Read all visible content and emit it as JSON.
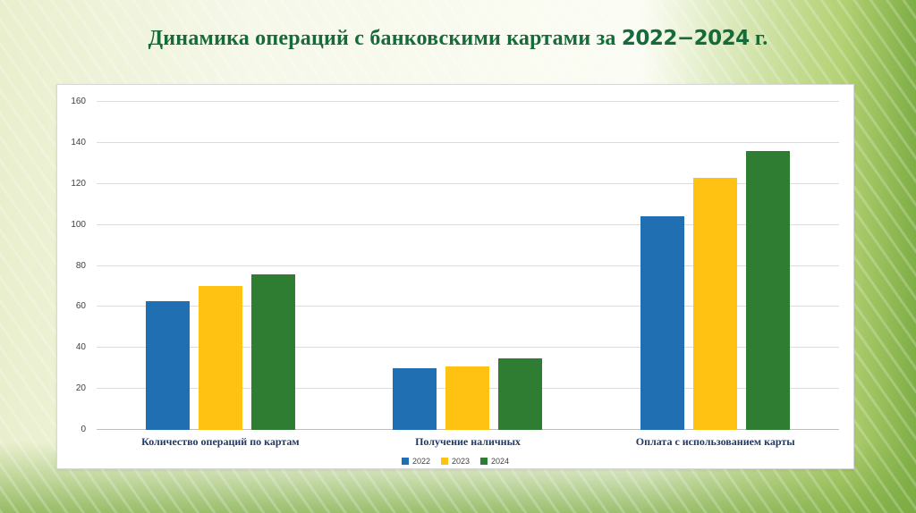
{
  "title": {
    "prefix": "Динамика операций с банковскими картами за",
    "years": "2022−2024",
    "suffix": "г."
  },
  "chart_data": {
    "type": "bar",
    "title": "Динамика операций с банковскими картами за 2022−2024 г.",
    "categories": [
      "Количество операций по картам",
      "Получение наличных",
      "Оплата с использованием карты"
    ],
    "series": [
      {
        "name": "2022",
        "color": "#1f6fb2",
        "values": [
          63,
          30,
          104
        ]
      },
      {
        "name": "2023",
        "color": "#ffc212",
        "values": [
          70,
          31,
          123
        ]
      },
      {
        "name": "2024",
        "color": "#2e7d32",
        "values": [
          76,
          35,
          136
        ]
      }
    ],
    "ylim": [
      0,
      160
    ],
    "ytick_step": 20,
    "grid": true,
    "legend_position": "bottom"
  }
}
